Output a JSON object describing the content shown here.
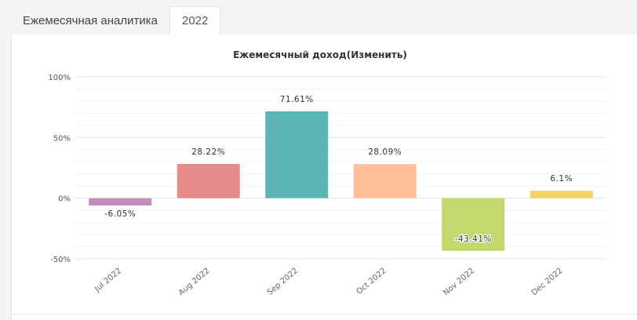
{
  "tabs": [
    {
      "label": "Ежемесячная аналитика",
      "active": false
    },
    {
      "label": "2022",
      "active": true
    }
  ],
  "chart_data": {
    "type": "bar",
    "title": "Ежемесячный доход(Изменить)",
    "xlabel": "",
    "ylabel": "",
    "categories": [
      "Jul 2022",
      "Aug 2022",
      "Sep 2022",
      "Oct 2022",
      "Nov 2022",
      "Dec 2022"
    ],
    "values": [
      -6.05,
      28.22,
      71.61,
      28.09,
      -43.41,
      6.1
    ],
    "data_labels": [
      "-6.05%",
      "28.22%",
      "71.61%",
      "28.09%",
      "-43.41%",
      "6.1%"
    ],
    "colors": [
      "#c28fbd",
      "#e58c8a",
      "#5bb5b3",
      "#ffbf99",
      "#c2d96e",
      "#f6d16a"
    ],
    "ylim": [
      -50,
      100
    ],
    "yticks": [
      100,
      50,
      0,
      -50
    ],
    "ytick_labels": [
      "100%",
      "50%",
      "0%",
      "-50%"
    ],
    "grid": true,
    "legend": "none"
  }
}
